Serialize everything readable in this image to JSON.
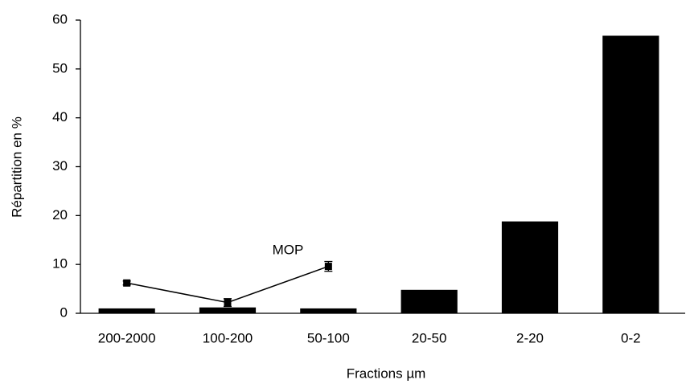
{
  "chart_data": {
    "type": "bar",
    "categories": [
      "200-2000",
      "100-200",
      "50-100",
      "20-50",
      "2-20",
      "0-2"
    ],
    "values": [
      1.0,
      1.2,
      1.0,
      4.8,
      18.8,
      56.8
    ],
    "color": "#000000",
    "series": [
      {
        "name": "MOP",
        "type": "line",
        "color": "#000000",
        "values": [
          6.2,
          2.2,
          9.6,
          null,
          null,
          null
        ],
        "errors": [
          0.4,
          0.8,
          1.0,
          null,
          null,
          null
        ]
      }
    ],
    "xlabel": "Fractions µm",
    "ylabel": "Répartition en  %",
    "ylim": [
      0,
      60
    ],
    "yticks": [
      0,
      10,
      20,
      30,
      40,
      50,
      60
    ],
    "grid": false
  }
}
